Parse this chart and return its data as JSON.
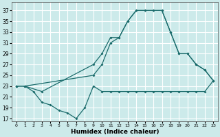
{
  "xlabel": "Humidex (Indice chaleur)",
  "background_color": "#cceaea",
  "grid_color": "#ffffff",
  "line_color": "#1a6b6b",
  "xlim": [
    -0.5,
    23.5
  ],
  "ylim": [
    16.5,
    38.5
  ],
  "yticks": [
    17,
    19,
    21,
    23,
    25,
    27,
    29,
    31,
    33,
    35,
    37
  ],
  "xticks": [
    0,
    1,
    2,
    3,
    4,
    5,
    6,
    7,
    8,
    9,
    10,
    11,
    12,
    13,
    14,
    15,
    16,
    17,
    18,
    19,
    20,
    21,
    22,
    23
  ],
  "line1_x": [
    0,
    1,
    3,
    9,
    10,
    11,
    12,
    13,
    14,
    15,
    16,
    17,
    18,
    19,
    20,
    21,
    22,
    23
  ],
  "line1_y": [
    23,
    23,
    22,
    27,
    29,
    32,
    32,
    35,
    37,
    37,
    37,
    37,
    33,
    29,
    29,
    27,
    26,
    24
  ],
  "line2_x": [
    0,
    1,
    9,
    10,
    11,
    12,
    13,
    14,
    15,
    16,
    17,
    18,
    19,
    20,
    21,
    22,
    23
  ],
  "line2_y": [
    23,
    23,
    25,
    27,
    31,
    32,
    35,
    37,
    37,
    37,
    37,
    33,
    29,
    29,
    27,
    26,
    24
  ],
  "line3_x": [
    0,
    1,
    2,
    3,
    4,
    5,
    6,
    7,
    8,
    9,
    10,
    11,
    12,
    13,
    14,
    15,
    16,
    17,
    18,
    19,
    20,
    21,
    22,
    23
  ],
  "line3_y": [
    23,
    23,
    22,
    20,
    19.5,
    18.5,
    18,
    17,
    19,
    23,
    22,
    22,
    22,
    22,
    22,
    22,
    22,
    22,
    22,
    22,
    22,
    22,
    22,
    24
  ]
}
